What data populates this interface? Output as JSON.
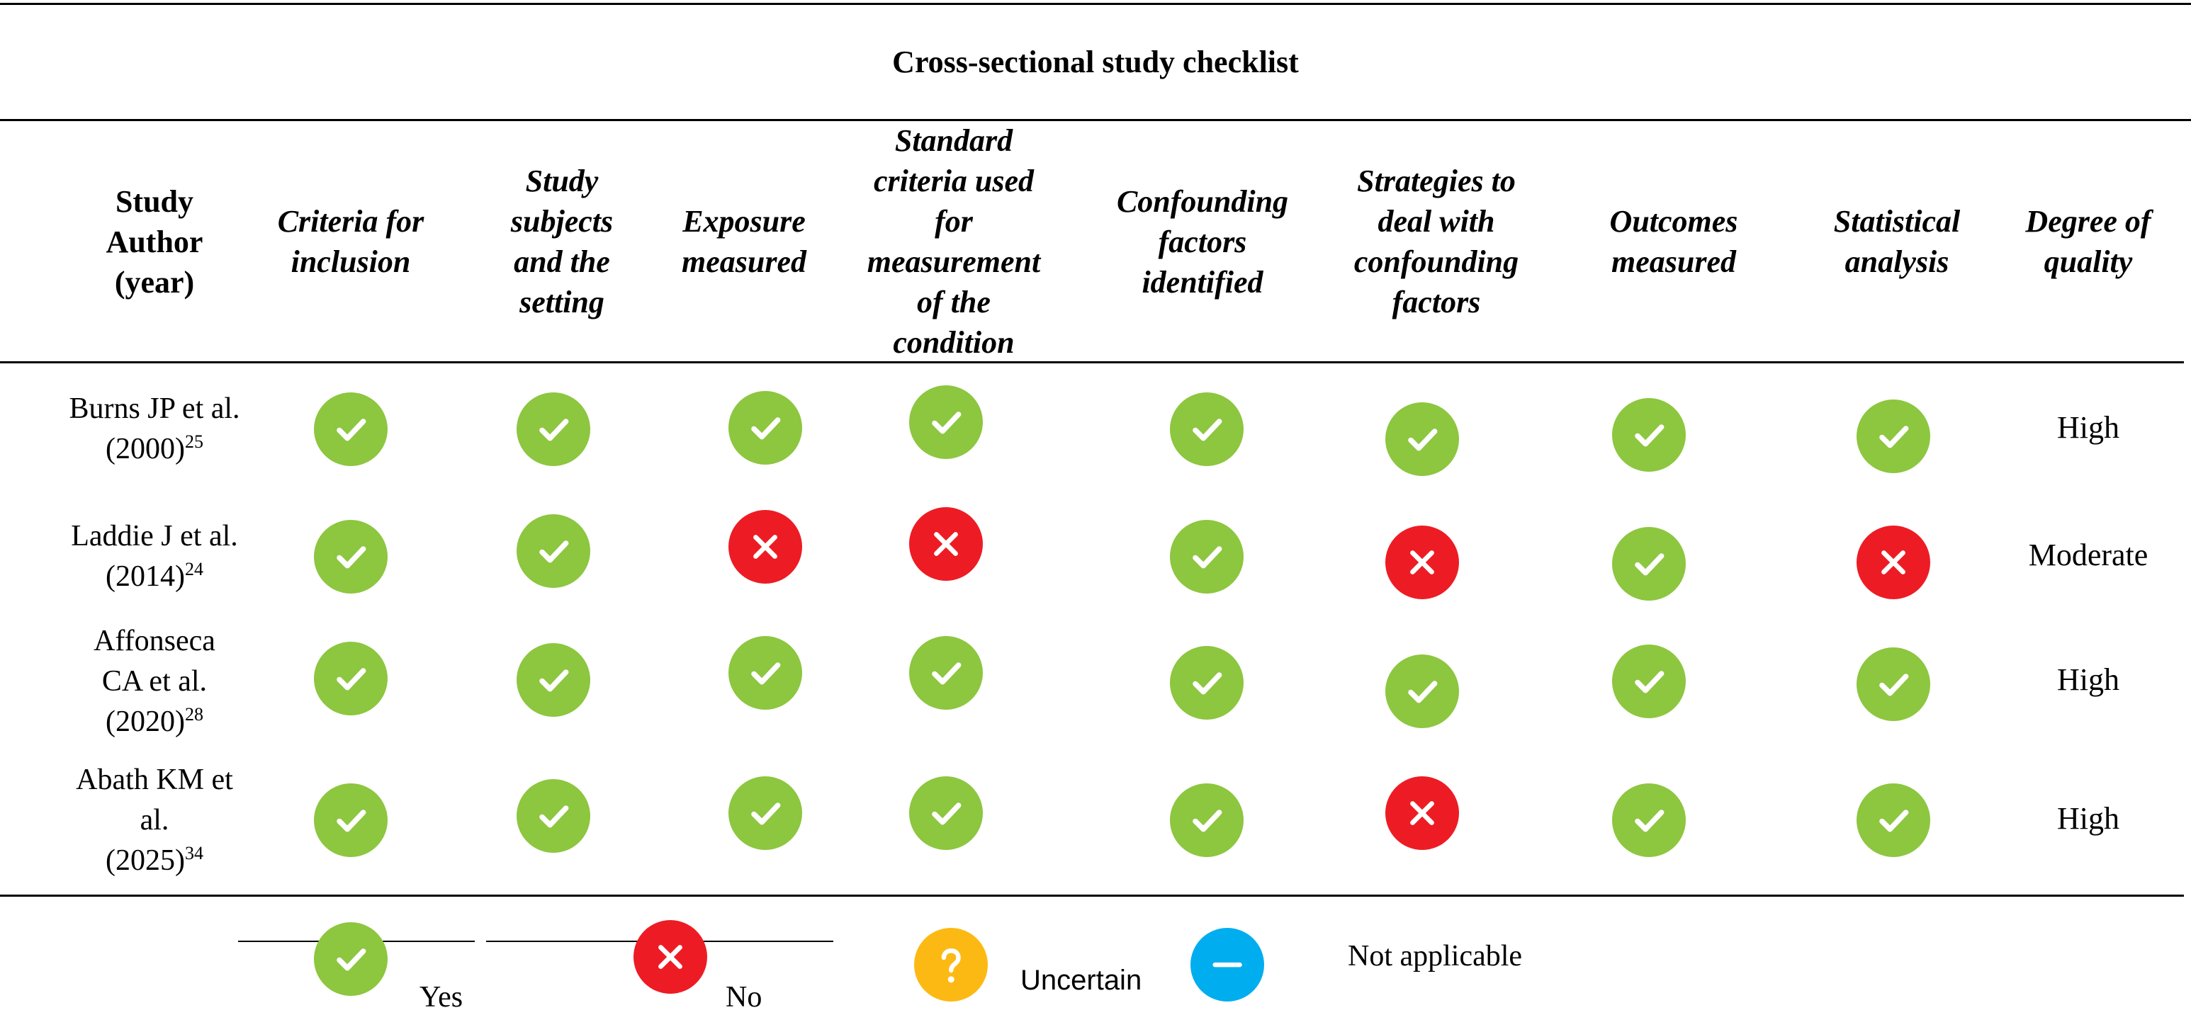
{
  "title": "Cross-sectional study checklist",
  "headers": [
    "Study\nAuthor\n(year)",
    "Criteria for\ninclusion",
    "Study\nsubjects\nand the\nsetting",
    "Exposure\nmeasured",
    "Standard\ncriteria used\nfor\nmeasurement\nof the\ncondition",
    "Confounding\nfactors\nidentified",
    "Strategies to\ndeal with\nconfounding\nfactors",
    "Outcomes\nmeasured",
    "Statistical\nanalysis",
    "Degree of\nquality"
  ],
  "rows": [
    {
      "author_lines": [
        "Burns JP et al."
      ],
      "year": "(2000)",
      "ref": "25",
      "marks": [
        "yes",
        "yes",
        "yes",
        "yes",
        "yes",
        "yes",
        "yes",
        "yes"
      ],
      "quality": "High"
    },
    {
      "author_lines": [
        "Laddie J et al."
      ],
      "year": "(2014)",
      "ref": "24",
      "marks": [
        "yes",
        "yes",
        "no",
        "no",
        "yes",
        "no",
        "yes",
        "no"
      ],
      "quality": "Moderate"
    },
    {
      "author_lines": [
        "Affonseca",
        "CA et al."
      ],
      "year": "(2020)",
      "ref": "28",
      "marks": [
        "yes",
        "yes",
        "yes",
        "yes",
        "yes",
        "yes",
        "yes",
        "yes"
      ],
      "quality": "High"
    },
    {
      "author_lines": [
        "Abath KM et",
        "al."
      ],
      "year": "(2025)",
      "ref": "34",
      "marks": [
        "yes",
        "yes",
        "yes",
        "yes",
        "yes",
        "no",
        "yes",
        "yes"
      ],
      "quality": "High"
    }
  ],
  "legend": {
    "yes": "Yes",
    "no": "No",
    "uncertain": "Uncertain",
    "not_applicable": "Not applicable"
  },
  "icons": {
    "yes": "check-icon",
    "no": "cross-icon",
    "uncertain": "question-icon",
    "not_applicable": "minus-icon"
  },
  "colors": {
    "yes": "#8dc63f",
    "no": "#ed1c24",
    "uncertain": "#fdb913",
    "not_applicable": "#00aeef"
  }
}
